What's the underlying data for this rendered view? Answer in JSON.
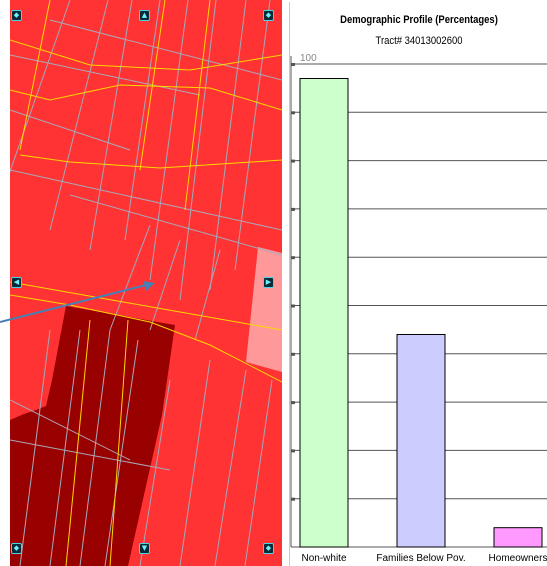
{
  "map": {
    "nav_buttons": [
      {
        "name": "pan-northwest-button",
        "glyph": "◆"
      },
      {
        "name": "pan-north-button",
        "glyph": "▲"
      },
      {
        "name": "pan-northeast-button",
        "glyph": "◆"
      },
      {
        "name": "pan-west-button",
        "glyph": "◀"
      },
      {
        "name": "pan-east-button",
        "glyph": "▶"
      },
      {
        "name": "pan-southwest-button",
        "glyph": "◆"
      },
      {
        "name": "pan-south-button",
        "glyph": "▼"
      },
      {
        "name": "pan-southeast-button",
        "glyph": "◆"
      }
    ],
    "colors": {
      "tract_fill": "#ff3333",
      "dark_tract": "#990000",
      "light_tract": "#ff9999",
      "road_yellow": "#ffd700",
      "road_gray": "#a8a8b8",
      "pointer_arrow": "#4a7fb5"
    }
  },
  "chart_data": {
    "type": "bar",
    "title": "Demographic Profile (Percentages)",
    "subtitle": "Tract# 34013002600",
    "categories": [
      "Non-white",
      "Families Below Pov.",
      "Homeowners"
    ],
    "values": [
      97,
      44,
      4
    ],
    "colors": [
      "#ccffcc",
      "#ccccff",
      "#ff99ff"
    ],
    "ylim": [
      0,
      100
    ],
    "ytick_label": "100",
    "grid": true
  }
}
